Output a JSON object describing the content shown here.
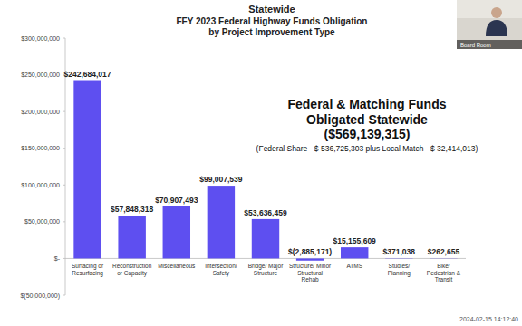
{
  "chart_data": {
    "type": "bar",
    "title": "Statewide",
    "subtitle": [
      "FFY 2023 Federal Highway Funds Obligation",
      "by Project Improvement Type"
    ],
    "annotations": [
      "Federal & Matching Funds",
      "Obligated  Statewide",
      "($569,139,315)",
      "(Federal Share - $ 536,725,303 plus Local Match - $ 32,414,013)"
    ],
    "categories": [
      "Surfacing or Resurfacing",
      "Reconstruction or Capacity",
      "Miscellaneous",
      "Intersection/ Safety",
      "Bridge/ Major Structure",
      "Structure/ Minor Structural Rehab",
      "ATMS",
      "Studies/ Planning",
      "Bike/ Pedestrian & Transit"
    ],
    "values": [
      242684017,
      57848318,
      70907493,
      99007539,
      53636459,
      -2885171,
      15155609,
      371038,
      262655
    ],
    "value_labels": [
      "$242,684,017",
      "$57,848,318",
      "$70,907,493",
      "$99,007,539",
      "$53,636,459",
      "$(2,885,171)",
      "$15,155,609",
      "$371,038",
      "$262,655"
    ],
    "data_labels": true,
    "color": "#5e4ff0",
    "ylim": [
      -50000000,
      300000000
    ],
    "yticks": [
      {
        "value": -50000000,
        "label": "$(50,000,000)"
      },
      {
        "value": 0,
        "label": "$-"
      },
      {
        "value": 50000000,
        "label": "$50,000,000"
      },
      {
        "value": 100000000,
        "label": "$100,000,000"
      },
      {
        "value": 150000000,
        "label": "$150,000,000"
      },
      {
        "value": 200000000,
        "label": "$200,000,000"
      },
      {
        "value": 250000000,
        "label": "$250,000,000"
      },
      {
        "value": 300000000,
        "label": "$300,000,000"
      }
    ],
    "grid": false
  },
  "overlay": {
    "camera_label": "Board Room",
    "timestamp": "2024-02-15 14:12:40"
  }
}
